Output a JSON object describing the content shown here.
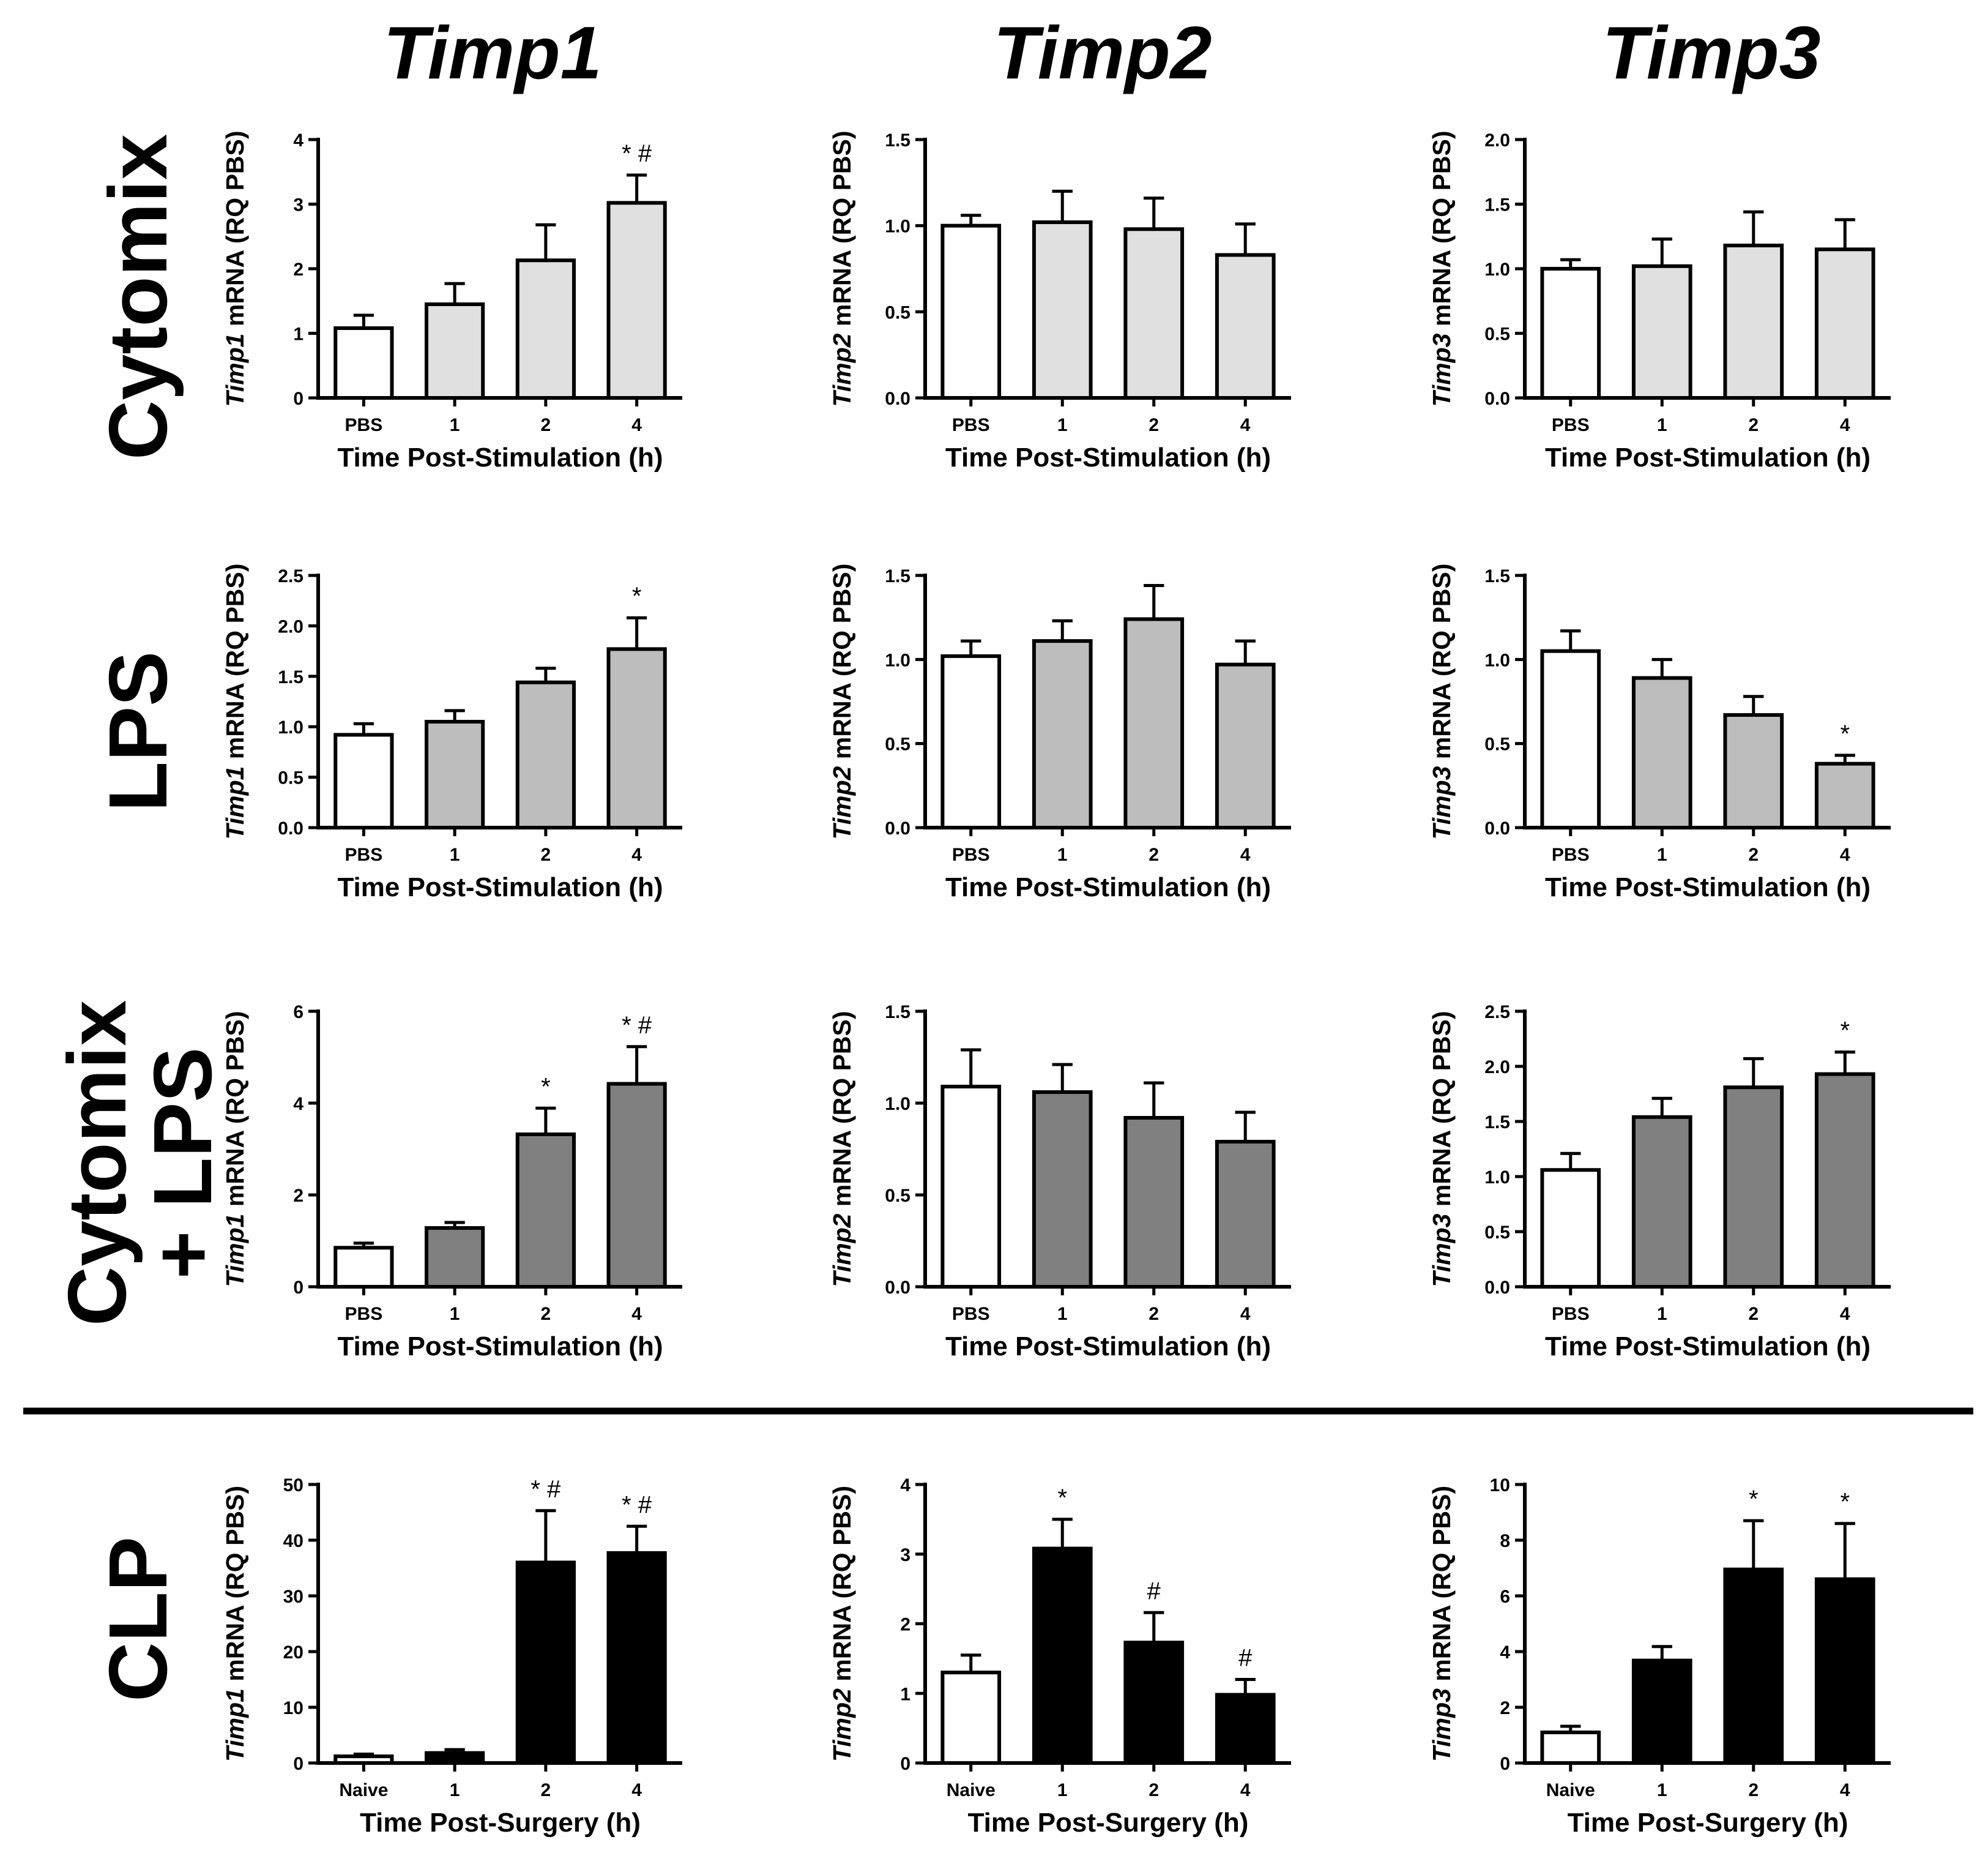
{
  "column_headers": [
    "Timp1",
    "Timp2",
    "Timp3"
  ],
  "row_labels": [
    {
      "lines": [
        "Cytomix"
      ]
    },
    {
      "lines": [
        "LPS"
      ]
    },
    {
      "lines": [
        "Cytomix",
        "+ LPS"
      ]
    },
    {
      "lines": [
        "CLP"
      ]
    }
  ],
  "colors": {
    "control": "#ffffff",
    "cytomix": "#e0e0e0",
    "lps": "#bdbdbd",
    "cytomix_lps": "#808080",
    "clp": "#000000",
    "axis": "#000000"
  },
  "chart_data": [
    {
      "id": "cytomix-timp1",
      "type": "bar",
      "row": 0,
      "col": 0,
      "gene": "Timp1",
      "ylabel_suffix": " mRNA (RQ PBS)",
      "xlabel": "Time Post-Stimulation (h)",
      "categories": [
        "PBS",
        "1",
        "2",
        "4"
      ],
      "values": [
        1.08,
        1.45,
        2.13,
        3.02
      ],
      "errors": [
        0.2,
        0.32,
        0.55,
        0.43
      ],
      "annotations": [
        "",
        "",
        "",
        "* #"
      ],
      "ylim": [
        0,
        4
      ],
      "yticks": [
        "0",
        "1",
        "2",
        "3",
        "4"
      ],
      "fill": "cytomix"
    },
    {
      "id": "cytomix-timp2",
      "type": "bar",
      "row": 0,
      "col": 1,
      "gene": "Timp2",
      "ylabel_suffix": " mRNA (RQ PBS)",
      "xlabel": "Time Post-Stimulation (h)",
      "categories": [
        "PBS",
        "1",
        "2",
        "4"
      ],
      "values": [
        1.0,
        1.02,
        0.98,
        0.83
      ],
      "errors": [
        0.06,
        0.18,
        0.18,
        0.18
      ],
      "annotations": [
        "",
        "",
        "",
        ""
      ],
      "ylim": [
        0,
        1.5
      ],
      "yticks": [
        "0.0",
        "0.5",
        "1.0",
        "1.5"
      ],
      "fill": "cytomix"
    },
    {
      "id": "cytomix-timp3",
      "type": "bar",
      "row": 0,
      "col": 2,
      "gene": "Timp3",
      "ylabel_suffix": " mRNA (RQ PBS)",
      "xlabel": "Time Post-Stimulation (h)",
      "categories": [
        "PBS",
        "1",
        "2",
        "4"
      ],
      "values": [
        1.0,
        1.02,
        1.18,
        1.15
      ],
      "errors": [
        0.07,
        0.21,
        0.26,
        0.23
      ],
      "annotations": [
        "",
        "",
        "",
        ""
      ],
      "ylim": [
        0,
        2
      ],
      "yticks": [
        "0.0",
        "0.5",
        "1.0",
        "1.5",
        "2.0"
      ],
      "fill": "cytomix"
    },
    {
      "id": "lps-timp1",
      "type": "bar",
      "row": 1,
      "col": 0,
      "gene": "Timp1",
      "ylabel_suffix": " mRNA (RQ PBS)",
      "xlabel": "Time Post-Stimulation (h)",
      "categories": [
        "PBS",
        "1",
        "2",
        "4"
      ],
      "values": [
        0.92,
        1.05,
        1.44,
        1.77
      ],
      "errors": [
        0.11,
        0.11,
        0.14,
        0.31
      ],
      "annotations": [
        "",
        "",
        "",
        "*"
      ],
      "ylim": [
        0,
        2.5
      ],
      "yticks": [
        "0.0",
        "0.5",
        "1.0",
        "1.5",
        "2.0",
        "2.5"
      ],
      "fill": "lps"
    },
    {
      "id": "lps-timp2",
      "type": "bar",
      "row": 1,
      "col": 1,
      "gene": "Timp2",
      "ylabel_suffix": " mRNA (RQ PBS)",
      "xlabel": "Time Post-Stimulation (h)",
      "categories": [
        "PBS",
        "1",
        "2",
        "4"
      ],
      "values": [
        1.02,
        1.11,
        1.24,
        0.97
      ],
      "errors": [
        0.09,
        0.12,
        0.2,
        0.14
      ],
      "annotations": [
        "",
        "",
        "",
        ""
      ],
      "ylim": [
        0,
        1.5
      ],
      "yticks": [
        "0.0",
        "0.5",
        "1.0",
        "1.5"
      ],
      "fill": "lps"
    },
    {
      "id": "lps-timp3",
      "type": "bar",
      "row": 1,
      "col": 2,
      "gene": "Timp3",
      "ylabel_suffix": " mRNA (RQ PBS)",
      "xlabel": "Time Post-Stimulation (h)",
      "categories": [
        "PBS",
        "1",
        "2",
        "4"
      ],
      "values": [
        1.05,
        0.89,
        0.67,
        0.38
      ],
      "errors": [
        0.12,
        0.11,
        0.11,
        0.05
      ],
      "annotations": [
        "",
        "",
        "",
        "*"
      ],
      "ylim": [
        0,
        1.5
      ],
      "yticks": [
        "0.0",
        "0.5",
        "1.0",
        "1.5"
      ],
      "fill": "lps"
    },
    {
      "id": "cytomixlps-timp1",
      "type": "bar",
      "row": 2,
      "col": 0,
      "gene": "Timp1",
      "ylabel_suffix": " mRNA (RQ PBS)",
      "xlabel": "Time Post-Stimulation (h)",
      "categories": [
        "PBS",
        "1",
        "2",
        "4"
      ],
      "values": [
        0.85,
        1.28,
        3.32,
        4.42
      ],
      "errors": [
        0.1,
        0.12,
        0.57,
        0.81
      ],
      "annotations": [
        "",
        "",
        "*",
        "* #"
      ],
      "ylim": [
        0,
        6
      ],
      "yticks": [
        "0",
        "2",
        "4",
        "6"
      ],
      "fill": "cytomix_lps"
    },
    {
      "id": "cytomixlps-timp2",
      "type": "bar",
      "row": 2,
      "col": 1,
      "gene": "Timp2",
      "ylabel_suffix": " mRNA (RQ PBS)",
      "xlabel": "Time Post-Stimulation (h)",
      "categories": [
        "PBS",
        "1",
        "2",
        "4"
      ],
      "values": [
        1.09,
        1.06,
        0.92,
        0.79
      ],
      "errors": [
        0.2,
        0.15,
        0.19,
        0.16
      ],
      "annotations": [
        "",
        "",
        "",
        ""
      ],
      "ylim": [
        0,
        1.5
      ],
      "yticks": [
        "0.0",
        "0.5",
        "1.0",
        "1.5"
      ],
      "fill": "cytomix_lps"
    },
    {
      "id": "cytomixlps-timp3",
      "type": "bar",
      "row": 2,
      "col": 2,
      "gene": "Timp3",
      "ylabel_suffix": " mRNA (RQ PBS)",
      "xlabel": "Time Post-Stimulation (h)",
      "categories": [
        "PBS",
        "1",
        "2",
        "4"
      ],
      "values": [
        1.06,
        1.54,
        1.81,
        1.93
      ],
      "errors": [
        0.15,
        0.17,
        0.26,
        0.2
      ],
      "annotations": [
        "",
        "",
        "",
        "*"
      ],
      "ylim": [
        0,
        2.5
      ],
      "yticks": [
        "0.0",
        "0.5",
        "1.0",
        "1.5",
        "2.0",
        "2.5"
      ],
      "fill": "cytomix_lps"
    },
    {
      "id": "clp-timp1",
      "type": "bar",
      "row": 3,
      "col": 0,
      "gene": "Timp1",
      "ylabel_suffix": " mRNA (RQ PBS)",
      "xlabel": "Time Post-Surgery (h)",
      "categories": [
        "Naive",
        "1",
        "2",
        "4"
      ],
      "values": [
        1.2,
        1.8,
        36.0,
        37.7
      ],
      "errors": [
        0.4,
        0.6,
        9.3,
        4.8
      ],
      "annotations": [
        "",
        "",
        "* #",
        "* #"
      ],
      "ylim": [
        0,
        50
      ],
      "yticks": [
        "0",
        "10",
        "20",
        "30",
        "40",
        "50"
      ],
      "fill": "clp"
    },
    {
      "id": "clp-timp2",
      "type": "bar",
      "row": 3,
      "col": 1,
      "gene": "Timp2",
      "ylabel_suffix": " mRNA (RQ PBS)",
      "xlabel": "Time Post-Surgery (h)",
      "categories": [
        "Naive",
        "1",
        "2",
        "4"
      ],
      "values": [
        1.3,
        3.08,
        1.73,
        0.98
      ],
      "errors": [
        0.25,
        0.42,
        0.43,
        0.22
      ],
      "annotations": [
        "",
        "*",
        "#",
        "#"
      ],
      "ylim": [
        0,
        4
      ],
      "yticks": [
        "0",
        "1",
        "2",
        "3",
        "4"
      ],
      "fill": "clp"
    },
    {
      "id": "clp-timp3",
      "type": "bar",
      "row": 3,
      "col": 2,
      "gene": "Timp3",
      "ylabel_suffix": " mRNA (RQ PBS)",
      "xlabel": "Time Post-Surgery (h)",
      "categories": [
        "Naive",
        "1",
        "2",
        "4"
      ],
      "values": [
        1.1,
        3.68,
        6.95,
        6.6
      ],
      "errors": [
        0.22,
        0.5,
        1.75,
        2.0
      ],
      "annotations": [
        "",
        "",
        "*",
        "*"
      ],
      "ylim": [
        0,
        10
      ],
      "yticks": [
        "0",
        "2",
        "4",
        "6",
        "8",
        "10"
      ],
      "fill": "clp"
    }
  ]
}
